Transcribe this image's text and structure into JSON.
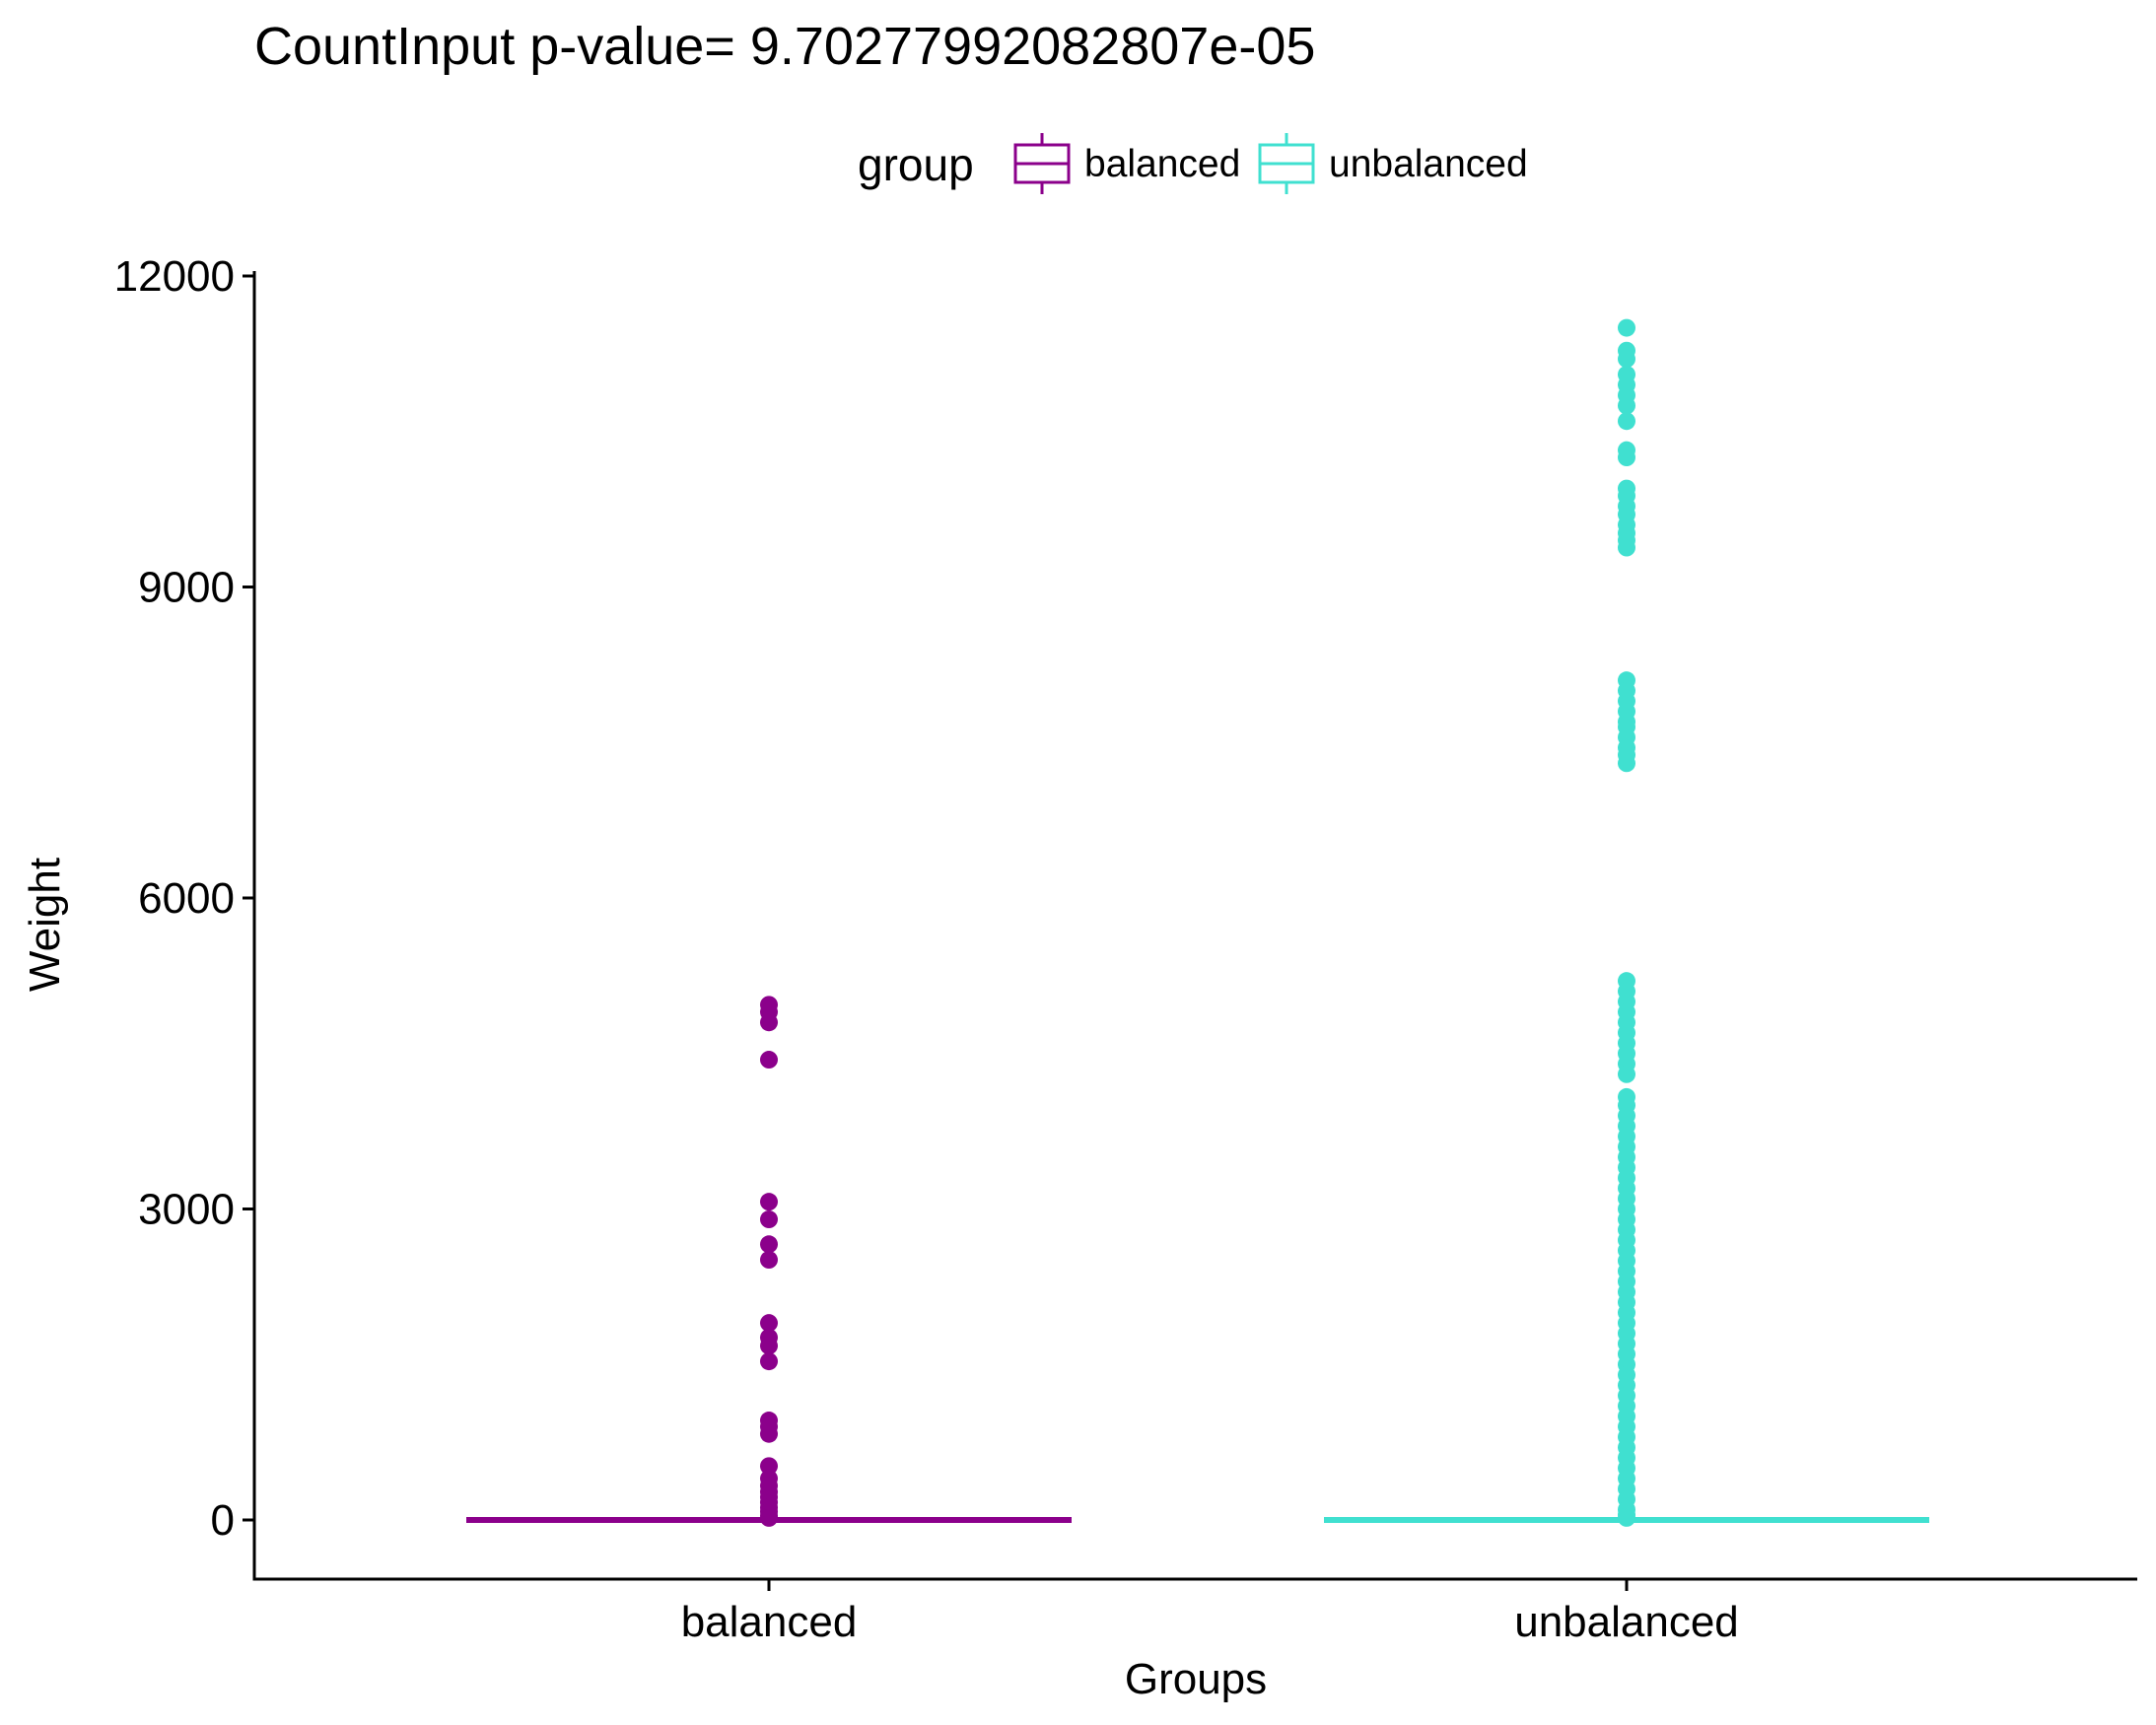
{
  "chart_data": {
    "type": "box",
    "title": "CountInput  p-value= 9.70277992082807e-05",
    "xlabel": "Groups",
    "ylabel": "Weight",
    "ylim": [
      -560,
      12050
    ],
    "yticks": [
      0,
      3000,
      6000,
      9000,
      12000
    ],
    "categories": [
      "balanced",
      "unbalanced"
    ],
    "legend": {
      "title": "group",
      "position": "top",
      "entries": [
        "balanced",
        "unbalanced"
      ]
    },
    "grid": false,
    "series": [
      {
        "name": "balanced",
        "color": "#8B008B",
        "box": {
          "min": 0,
          "q1": 0,
          "median": 0,
          "q3": 0,
          "max": 0
        },
        "outliers": [
          4970,
          4900,
          4800,
          4440,
          3070,
          2900,
          2660,
          2510,
          1900,
          1760,
          1680,
          1530,
          960,
          900,
          830,
          520,
          400,
          330,
          270,
          220,
          170,
          120,
          80,
          40,
          20
        ]
      },
      {
        "name": "unbalanced",
        "color": "#40E0D0",
        "box": {
          "min": 0,
          "q1": 0,
          "median": 0,
          "q3": 0,
          "max": 0
        },
        "outliers": [
          11500,
          11280,
          11200,
          11050,
          10950,
          10850,
          10750,
          10600,
          10320,
          10250,
          9950,
          9880,
          9780,
          9700,
          9600,
          9520,
          9450,
          9380,
          8100,
          8000,
          7900,
          7800,
          7700,
          7650,
          7550,
          7450,
          7380,
          7300,
          5200,
          5100,
          5000,
          4900,
          4800,
          4700,
          4600,
          4500,
          4400,
          4300,
          4080,
          4000,
          3900,
          3800,
          3700,
          3600,
          3500,
          3400,
          3300,
          3200,
          3100,
          3000,
          2900,
          2800,
          2700,
          2600,
          2500,
          2400,
          2300,
          2200,
          2100,
          2000,
          1900,
          1800,
          1700,
          1600,
          1500,
          1400,
          1300,
          1200,
          1100,
          1000,
          900,
          800,
          700,
          600,
          500,
          400,
          300,
          200,
          100,
          50,
          20
        ]
      }
    ]
  }
}
